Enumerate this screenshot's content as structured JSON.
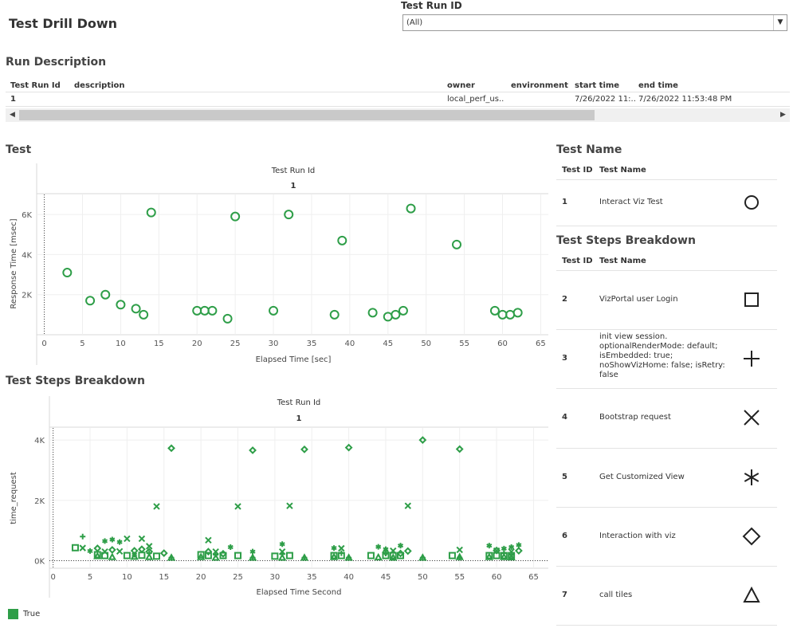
{
  "header": {
    "title": "Test Drill Down"
  },
  "filter": {
    "label": "Test Run ID",
    "value": "(All)"
  },
  "run_description": {
    "title": "Run Description",
    "columns": [
      "Test Run Id",
      "description",
      "owner",
      "environment",
      "start time",
      "end time"
    ],
    "row": {
      "test_run_id": "1",
      "description": "",
      "owner": "local_perf_us..",
      "environment": "",
      "start_time": "7/26/2022 11:..",
      "end_time": "7/26/2022 11:53:48 PM"
    }
  },
  "test_chart": {
    "section_title": "Test",
    "chart_data": {
      "type": "scatter",
      "header_label": "Test Run Id",
      "header_value": "1",
      "xlabel": "Elapsed Time [sec]",
      "ylabel": "Response Time [msec]",
      "xlim": [
        -1,
        66
      ],
      "ylim": [
        0,
        7000
      ],
      "x_ticks": [
        0,
        5,
        10,
        15,
        20,
        25,
        30,
        35,
        40,
        45,
        50,
        55,
        60,
        65
      ],
      "y_ticks": [
        {
          "v": 2000,
          "label": "2K"
        },
        {
          "v": 4000,
          "label": "4K"
        },
        {
          "v": 6000,
          "label": "6K"
        }
      ],
      "series": [
        {
          "name": "Interact Viz Test",
          "marker": "circle",
          "points": [
            [
              3,
              3100
            ],
            [
              6,
              1700
            ],
            [
              8,
              2000
            ],
            [
              10,
              1500
            ],
            [
              12,
              1300
            ],
            [
              13,
              1000
            ],
            [
              14,
              6100
            ],
            [
              20,
              1200
            ],
            [
              21,
              1200
            ],
            [
              22,
              1200
            ],
            [
              24,
              800
            ],
            [
              25,
              5900
            ],
            [
              30,
              1200
            ],
            [
              32,
              6000
            ],
            [
              38,
              1000
            ],
            [
              39,
              4700
            ],
            [
              43,
              1100
            ],
            [
              45,
              900
            ],
            [
              46,
              1000
            ],
            [
              47,
              1200
            ],
            [
              48,
              6300
            ],
            [
              54,
              4500
            ],
            [
              59,
              1200
            ],
            [
              60,
              1000
            ],
            [
              61,
              1000
            ],
            [
              62,
              1100
            ]
          ]
        }
      ]
    }
  },
  "steps_chart": {
    "section_title": "Test Steps Breakdown",
    "chart_data": {
      "type": "scatter",
      "header_label": "Test Run Id",
      "header_value": "1",
      "xlabel": "Elapsed Time Second",
      "ylabel": "time_request",
      "xlim": [
        -0.5,
        67
      ],
      "ylim": [
        -250,
        4400
      ],
      "x_ticks": [
        0,
        5,
        10,
        15,
        20,
        25,
        30,
        35,
        40,
        45,
        50,
        55,
        60,
        65
      ],
      "y_ticks": [
        {
          "v": 0,
          "label": "0K"
        },
        {
          "v": 2000,
          "label": "2K"
        },
        {
          "v": 4000,
          "label": "4K"
        }
      ],
      "series": [
        {
          "name": "VizPortal user Login",
          "marker": "square",
          "points": [
            [
              3,
              430
            ],
            [
              6,
              200
            ],
            [
              7,
              170
            ],
            [
              10,
              170
            ],
            [
              12,
              180
            ],
            [
              14,
              150
            ],
            [
              20,
              200
            ],
            [
              21,
              170
            ],
            [
              23,
              170
            ],
            [
              25,
              170
            ],
            [
              30,
              150
            ],
            [
              32,
              170
            ],
            [
              38,
              170
            ],
            [
              39,
              170
            ],
            [
              43,
              170
            ],
            [
              45,
              170
            ],
            [
              46,
              170
            ],
            [
              47,
              170
            ],
            [
              54,
              170
            ],
            [
              59,
              170
            ],
            [
              60,
              170
            ],
            [
              61,
              170
            ],
            [
              62,
              170
            ]
          ]
        },
        {
          "name": "init view session",
          "marker": "plus",
          "points": [
            [
              4,
              800
            ],
            [
              13,
              250
            ],
            [
              16,
              100
            ],
            [
              22,
              200
            ],
            [
              27,
              100
            ],
            [
              31,
              220
            ],
            [
              34,
              100
            ],
            [
              39,
              250
            ],
            [
              40,
              100
            ],
            [
              45,
              240
            ],
            [
              50,
              100
            ],
            [
              55,
              100
            ],
            [
              61,
              250
            ],
            [
              62,
              200
            ]
          ]
        },
        {
          "name": "Bootstrap request",
          "marker": "x",
          "points": [
            [
              4,
              420
            ],
            [
              7,
              300
            ],
            [
              9,
              310
            ],
            [
              10,
              730
            ],
            [
              12,
              730
            ],
            [
              13,
              480
            ],
            [
              14,
              1800
            ],
            [
              21,
              680
            ],
            [
              22,
              300
            ],
            [
              25,
              1800
            ],
            [
              31,
              300
            ],
            [
              32,
              1820
            ],
            [
              39,
              410
            ],
            [
              46,
              330
            ],
            [
              48,
              1820
            ],
            [
              55,
              360
            ],
            [
              60,
              330
            ],
            [
              62,
              300
            ]
          ]
        },
        {
          "name": "Get Customized View",
          "marker": "asterisk",
          "points": [
            [
              5,
              320
            ],
            [
              7,
              650
            ],
            [
              8,
              700
            ],
            [
              9,
              620
            ],
            [
              11,
              200
            ],
            [
              24,
              450
            ],
            [
              27,
              300
            ],
            [
              31,
              550
            ],
            [
              38,
              420
            ],
            [
              44,
              460
            ],
            [
              45,
              380
            ],
            [
              47,
              500
            ],
            [
              59,
              500
            ],
            [
              61,
              400
            ],
            [
              62,
              450
            ],
            [
              63,
              520
            ]
          ]
        },
        {
          "name": "Interaction with viz",
          "marker": "diamond",
          "points": [
            [
              6,
              410
            ],
            [
              8,
              360
            ],
            [
              11,
              330
            ],
            [
              12,
              380
            ],
            [
              13,
              300
            ],
            [
              15,
              250
            ],
            [
              16,
              3730
            ],
            [
              21,
              300
            ],
            [
              23,
              230
            ],
            [
              27,
              3660
            ],
            [
              34,
              3690
            ],
            [
              40,
              3750
            ],
            [
              45,
              280
            ],
            [
              47,
              240
            ],
            [
              48,
              320
            ],
            [
              50,
              4000
            ],
            [
              55,
              3700
            ],
            [
              60,
              340
            ],
            [
              63,
              330
            ]
          ]
        },
        {
          "name": "call tiles",
          "marker": "triangle",
          "points": [
            [
              6,
              150
            ],
            [
              8,
              120
            ],
            [
              11,
              130
            ],
            [
              13,
              120
            ],
            [
              16,
              100
            ],
            [
              20,
              120
            ],
            [
              22,
              100
            ],
            [
              27,
              100
            ],
            [
              31,
              100
            ],
            [
              34,
              100
            ],
            [
              38,
              120
            ],
            [
              40,
              100
            ],
            [
              44,
              110
            ],
            [
              46,
              100
            ],
            [
              50,
              100
            ],
            [
              55,
              120
            ],
            [
              59,
              120
            ],
            [
              61,
              120
            ],
            [
              62,
              110
            ]
          ]
        }
      ]
    }
  },
  "color_legend": {
    "label": "True",
    "color": "#2e9e48"
  },
  "test_name_panel": {
    "title": "Test Name",
    "columns": [
      "Test ID",
      "Test Name"
    ],
    "rows": [
      {
        "id": "1",
        "name": "Interact Viz Test",
        "shape": "circle-icon"
      }
    ]
  },
  "steps_panel": {
    "title": "Test Steps Breakdown",
    "columns": [
      "Test ID",
      "Test Name"
    ],
    "rows": [
      {
        "id": "2",
        "name": "VizPortal user Login",
        "shape": "square-icon"
      },
      {
        "id": "3",
        "name": "init view session. optionalRenderMode: default; isEmbedded: true; noShowVizHome: false; isRetry: false",
        "shape": "plus-icon"
      },
      {
        "id": "4",
        "name": "Bootstrap request",
        "shape": "x-icon"
      },
      {
        "id": "5",
        "name": "Get Customized View",
        "shape": "asterisk-icon"
      },
      {
        "id": "6",
        "name": "Interaction with viz",
        "shape": "diamond-icon"
      },
      {
        "id": "7",
        "name": "call tiles",
        "shape": "triangle-icon"
      }
    ]
  }
}
